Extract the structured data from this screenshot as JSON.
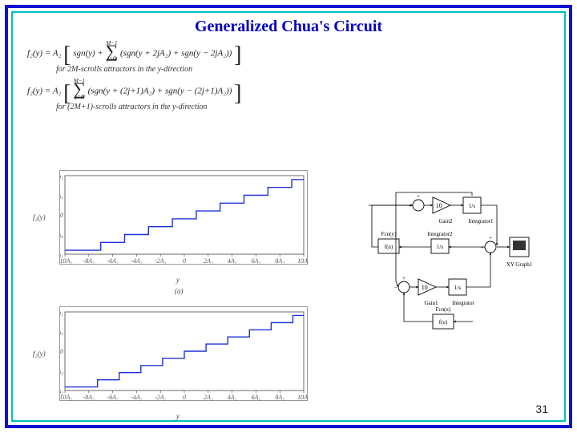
{
  "page": {
    "title": "Generalized Chua's Circuit",
    "number": "31",
    "border_outer_color": "#1010d0",
    "border_inner_color": "#00c0c0"
  },
  "equations": {
    "eq1_lhs": "f₂(y) = A₂",
    "eq1_sum_upper": "M−1",
    "eq1_sum_lower": "j=0",
    "eq1_body_pre": "sgn(y) +",
    "eq1_body": "(sgn(y + 2jA₂) + sgn(y − 2jA₂))",
    "caption1": "for 2M-scrolls attractors in the y-direction",
    "eq2_lhs": "f₂(y) = A₂",
    "eq2_sum_upper": "M−1",
    "eq2_sum_lower": "j=0",
    "eq2_body": "(sgn(y + (2j+1)A₂) + sgn(y − (2j+1)A₂))",
    "caption2": "for (2M+1)-scrolls attractors in the y-direction"
  },
  "plot_a": {
    "ylabel": "f₂(y)",
    "xlabel": "y",
    "tag": "(a)",
    "x_ticks": [
      "-10A₂",
      "-8A₂",
      "-6A₂",
      "-4A₂",
      "-2A₂",
      "0",
      "2A₂",
      "4A₂",
      "6A₂",
      "8A₂",
      "10A₂"
    ],
    "y_ticks": [
      "8A₂",
      "4A₂",
      "0",
      "-4A₂",
      "-8A₂"
    ],
    "line_color": "#2030d8",
    "axis_color": "#444444",
    "x_edges": [
      -9,
      -7,
      -5,
      -3,
      -1,
      1,
      3,
      5,
      7,
      9
    ],
    "levels": [
      -9,
      -7,
      -5,
      -3,
      -1,
      1,
      3,
      5,
      7,
      9
    ],
    "top_level": 9,
    "bottom_level": -9,
    "xlim": [
      -10,
      10
    ],
    "ylim": [
      -10,
      10
    ]
  },
  "plot_b": {
    "ylabel": "f₂(y)",
    "xlabel": "y",
    "x_ticks": [
      "-10A₂",
      "-8A₂",
      "-6A₂",
      "-4A₂",
      "-2A₂",
      "0",
      "2A₂",
      "4A₂",
      "6A₂",
      "8A₂",
      "10A₂"
    ],
    "y_ticks": [
      "8A₂",
      "4A₂",
      "0",
      "-4A₂",
      "-8A₂"
    ],
    "line_color": "#2030d8",
    "axis_color": "#444444",
    "x_edges": [
      -10,
      -8,
      -6,
      -4,
      -2,
      0,
      2,
      4,
      6,
      8,
      10
    ],
    "levels": [
      -10,
      -8,
      -6,
      -4,
      -2,
      0,
      2,
      4,
      6,
      8,
      10
    ],
    "top_level": 10,
    "bottom_level": -10,
    "xlim": [
      -11,
      11
    ],
    "ylim": [
      -11,
      11
    ]
  },
  "simulink": {
    "block_stroke": "#000000",
    "block_fill": "#ffffff",
    "wire_color": "#000000",
    "labels": {
      "gain2": "Gain2",
      "gain2_val": "10",
      "integrator1": "Integrator1",
      "integrator2": "Integrator2",
      "integrator": "Integrator",
      "gain1": "Gain1",
      "gain1_val": "10",
      "fcn_y": "Fcn(y)",
      "fcn_y_box": "f(u)",
      "fcn_x": "Fcn(x)",
      "fcn_x_box": "f(u)",
      "one_over_s": "1/s",
      "xy_graph": "XY Graph1",
      "sum_label": "+",
      "sum_minus": "−"
    }
  }
}
